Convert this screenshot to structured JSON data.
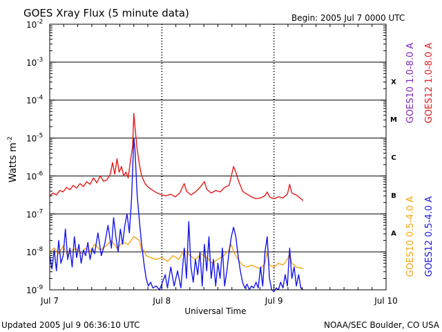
{
  "chart_data": {
    "type": "line",
    "title": "GOES Xray Flux (5 minute data)",
    "begin_text": "Begin:  2005 Jul 7 0000 UTC",
    "xlabel": "Universal Time",
    "ylabel": "Watts m",
    "ylabel_sup": "-2",
    "updated_text": "Updated 2005 Jul  9 06:36:10 UTC",
    "credit_text": "NOAA/SEC Boulder, CO USA",
    "x_range_days": [
      0,
      3
    ],
    "x_ticks": [
      {
        "day": 0,
        "label": "Jul 7"
      },
      {
        "day": 1,
        "label": "Jul 8"
      },
      {
        "day": 2,
        "label": "Jul 9"
      },
      {
        "day": 3,
        "label": "Jul 10"
      }
    ],
    "y_log_range": [
      -9,
      -2
    ],
    "y_ticks": [
      {
        "exp": -2,
        "base": "10",
        "power": "-2"
      },
      {
        "exp": -3,
        "base": "10",
        "power": "-3"
      },
      {
        "exp": -4,
        "base": "10",
        "power": "-4"
      },
      {
        "exp": -5,
        "base": "10",
        "power": "-5"
      },
      {
        "exp": -6,
        "base": "10",
        "power": "-6"
      },
      {
        "exp": -7,
        "base": "10",
        "power": "-7"
      },
      {
        "exp": -8,
        "base": "10",
        "power": "-8"
      },
      {
        "exp": -9,
        "base": "10",
        "power": "-9"
      }
    ],
    "flare_classes": [
      {
        "label": "X",
        "exp": -3.5
      },
      {
        "label": "M",
        "exp": -4.5
      },
      {
        "label": "C",
        "exp": -5.5
      },
      {
        "label": "B",
        "exp": -6.5
      },
      {
        "label": "A",
        "exp": -7.5
      }
    ],
    "legend": [
      {
        "name": "GOES10 1.0-8.0 A",
        "color": "#7b28b8"
      },
      {
        "name": "GOES12 1.0-8.0 A",
        "color": "#e41818"
      },
      {
        "name": "GOES10 0.5-4.0 A",
        "color": "#f5a511"
      },
      {
        "name": "GOES12 0.5-4.0 A",
        "color": "#1414e6"
      }
    ],
    "series": [
      {
        "name": "GOES12 1.0-8.0 A",
        "color": "#e41818",
        "points": [
          [
            0.0,
            -6.52
          ],
          [
            0.03,
            -6.45
          ],
          [
            0.06,
            -6.5
          ],
          [
            0.09,
            -6.38
          ],
          [
            0.12,
            -6.42
          ],
          [
            0.15,
            -6.3
          ],
          [
            0.18,
            -6.36
          ],
          [
            0.21,
            -6.25
          ],
          [
            0.24,
            -6.32
          ],
          [
            0.27,
            -6.2
          ],
          [
            0.3,
            -6.28
          ],
          [
            0.33,
            -6.15
          ],
          [
            0.36,
            -6.22
          ],
          [
            0.39,
            -6.05
          ],
          [
            0.42,
            -6.18
          ],
          [
            0.45,
            -6.0
          ],
          [
            0.48,
            -6.14
          ],
          [
            0.51,
            -6.1
          ],
          [
            0.54,
            -5.95
          ],
          [
            0.56,
            -5.65
          ],
          [
            0.58,
            -5.95
          ],
          [
            0.6,
            -5.55
          ],
          [
            0.62,
            -5.9
          ],
          [
            0.64,
            -5.75
          ],
          [
            0.66,
            -6.0
          ],
          [
            0.68,
            -5.9
          ],
          [
            0.7,
            -6.05
          ],
          [
            0.72,
            -5.6
          ],
          [
            0.74,
            -5.2
          ],
          [
            0.75,
            -4.35
          ],
          [
            0.76,
            -4.7
          ],
          [
            0.78,
            -5.3
          ],
          [
            0.8,
            -5.7
          ],
          [
            0.82,
            -6.0
          ],
          [
            0.85,
            -6.2
          ],
          [
            0.88,
            -6.3
          ],
          [
            0.92,
            -6.38
          ],
          [
            0.96,
            -6.45
          ],
          [
            1.0,
            -6.5
          ],
          [
            1.04,
            -6.52
          ],
          [
            1.08,
            -6.48
          ],
          [
            1.12,
            -6.55
          ],
          [
            1.16,
            -6.45
          ],
          [
            1.2,
            -6.2
          ],
          [
            1.22,
            -6.4
          ],
          [
            1.26,
            -6.5
          ],
          [
            1.3,
            -6.42
          ],
          [
            1.34,
            -6.3
          ],
          [
            1.38,
            -6.15
          ],
          [
            1.4,
            -6.35
          ],
          [
            1.44,
            -6.45
          ],
          [
            1.48,
            -6.38
          ],
          [
            1.52,
            -6.42
          ],
          [
            1.56,
            -6.3
          ],
          [
            1.6,
            -6.25
          ],
          [
            1.62,
            -6.0
          ],
          [
            1.64,
            -5.75
          ],
          [
            1.66,
            -5.9
          ],
          [
            1.68,
            -6.1
          ],
          [
            1.7,
            -6.25
          ],
          [
            1.72,
            -6.4
          ],
          [
            1.76,
            -6.48
          ],
          [
            1.8,
            -6.55
          ],
          [
            1.84,
            -6.6
          ],
          [
            1.88,
            -6.58
          ],
          [
            1.92,
            -6.52
          ],
          [
            1.94,
            -6.42
          ],
          [
            1.96,
            -6.55
          ],
          [
            2.0,
            -6.6
          ],
          [
            2.04,
            -6.55
          ],
          [
            2.08,
            -6.58
          ],
          [
            2.12,
            -6.48
          ],
          [
            2.14,
            -6.22
          ],
          [
            2.16,
            -6.45
          ],
          [
            2.2,
            -6.5
          ],
          [
            2.24,
            -6.6
          ],
          [
            2.26,
            -6.65
          ]
        ]
      },
      {
        "name": "GOES10 0.5-4.0 A",
        "color": "#f5a511",
        "points": [
          [
            0.0,
            -8.0
          ],
          [
            0.04,
            -7.9
          ],
          [
            0.08,
            -8.05
          ],
          [
            0.12,
            -7.85
          ],
          [
            0.16,
            -8.1
          ],
          [
            0.2,
            -7.95
          ],
          [
            0.24,
            -7.92
          ],
          [
            0.28,
            -8.05
          ],
          [
            0.32,
            -7.9
          ],
          [
            0.36,
            -8.0
          ],
          [
            0.4,
            -7.8
          ],
          [
            0.45,
            -7.95
          ],
          [
            0.5,
            -7.85
          ],
          [
            0.55,
            -7.7
          ],
          [
            0.6,
            -7.9
          ],
          [
            0.65,
            -7.75
          ],
          [
            0.7,
            -7.8
          ],
          [
            0.75,
            -7.6
          ],
          [
            0.8,
            -7.7
          ],
          [
            0.82,
            -8.0
          ],
          [
            0.84,
            -7.95
          ],
          [
            0.86,
            -8.1
          ],
          [
            0.9,
            -8.15
          ],
          [
            0.95,
            -8.2
          ],
          [
            1.0,
            -8.15
          ],
          [
            1.05,
            -8.25
          ],
          [
            1.1,
            -8.1
          ],
          [
            1.15,
            -8.2
          ],
          [
            1.2,
            -7.95
          ],
          [
            1.25,
            -8.1
          ],
          [
            1.3,
            -8.2
          ],
          [
            1.35,
            -8.05
          ],
          [
            1.4,
            -8.15
          ],
          [
            1.45,
            -8.3
          ],
          [
            1.5,
            -8.2
          ],
          [
            1.55,
            -8.1
          ],
          [
            1.6,
            -7.95
          ],
          [
            1.62,
            -7.8
          ],
          [
            1.64,
            -8.0
          ],
          [
            1.68,
            -8.2
          ],
          [
            1.72,
            -8.35
          ],
          [
            1.76,
            -8.4
          ],
          [
            1.8,
            -8.35
          ],
          [
            1.84,
            -8.4
          ],
          [
            1.88,
            -8.45
          ],
          [
            1.92,
            -8.3
          ],
          [
            1.94,
            -8.0
          ],
          [
            1.96,
            -8.35
          ],
          [
            2.0,
            -8.4
          ],
          [
            2.04,
            -8.3
          ],
          [
            2.08,
            -8.35
          ],
          [
            2.12,
            -8.2
          ],
          [
            2.14,
            -8.05
          ],
          [
            2.16,
            -8.3
          ],
          [
            2.2,
            -8.4
          ],
          [
            2.24,
            -8.42
          ],
          [
            2.26,
            -8.45
          ]
        ]
      },
      {
        "name": "GOES12 0.5-4.0 A",
        "color": "#1414e6",
        "points": [
          [
            0.0,
            -8.1
          ],
          [
            0.02,
            -8.45
          ],
          [
            0.04,
            -7.95
          ],
          [
            0.06,
            -8.5
          ],
          [
            0.08,
            -7.7
          ],
          [
            0.1,
            -8.3
          ],
          [
            0.12,
            -8.1
          ],
          [
            0.14,
            -7.4
          ],
          [
            0.16,
            -8.2
          ],
          [
            0.18,
            -7.9
          ],
          [
            0.2,
            -8.4
          ],
          [
            0.22,
            -7.6
          ],
          [
            0.24,
            -8.15
          ],
          [
            0.26,
            -7.8
          ],
          [
            0.28,
            -8.3
          ],
          [
            0.3,
            -7.95
          ],
          [
            0.32,
            -8.1
          ],
          [
            0.34,
            -7.75
          ],
          [
            0.36,
            -8.2
          ],
          [
            0.38,
            -7.9
          ],
          [
            0.4,
            -8.05
          ],
          [
            0.43,
            -7.5
          ],
          [
            0.46,
            -8.1
          ],
          [
            0.49,
            -7.8
          ],
          [
            0.52,
            -7.3
          ],
          [
            0.55,
            -7.9
          ],
          [
            0.57,
            -7.1
          ],
          [
            0.59,
            -7.6
          ],
          [
            0.61,
            -8.0
          ],
          [
            0.63,
            -7.4
          ],
          [
            0.65,
            -7.8
          ],
          [
            0.67,
            -7.3
          ],
          [
            0.69,
            -7.0
          ],
          [
            0.71,
            -7.5
          ],
          [
            0.73,
            -6.6
          ],
          [
            0.75,
            -5.0
          ],
          [
            0.76,
            -5.3
          ],
          [
            0.78,
            -6.5
          ],
          [
            0.8,
            -7.2
          ],
          [
            0.82,
            -7.8
          ],
          [
            0.84,
            -8.3
          ],
          [
            0.86,
            -8.7
          ],
          [
            0.88,
            -8.9
          ],
          [
            0.9,
            -8.8
          ],
          [
            0.92,
            -8.95
          ],
          [
            0.95,
            -8.9
          ],
          [
            0.98,
            -9.0
          ],
          [
            1.0,
            -8.85
          ],
          [
            1.03,
            -8.6
          ],
          [
            1.05,
            -8.95
          ],
          [
            1.08,
            -8.4
          ],
          [
            1.11,
            -8.9
          ],
          [
            1.14,
            -8.5
          ],
          [
            1.17,
            -8.95
          ],
          [
            1.2,
            -7.9
          ],
          [
            1.22,
            -8.7
          ],
          [
            1.24,
            -7.2
          ],
          [
            1.26,
            -8.4
          ],
          [
            1.28,
            -8.8
          ],
          [
            1.3,
            -8.2
          ],
          [
            1.32,
            -8.6
          ],
          [
            1.34,
            -8.0
          ],
          [
            1.36,
            -8.9
          ],
          [
            1.38,
            -7.8
          ],
          [
            1.4,
            -8.5
          ],
          [
            1.42,
            -7.6
          ],
          [
            1.44,
            -8.7
          ],
          [
            1.46,
            -8.2
          ],
          [
            1.48,
            -8.9
          ],
          [
            1.5,
            -8.3
          ],
          [
            1.52,
            -8.7
          ],
          [
            1.54,
            -7.9
          ],
          [
            1.56,
            -8.9
          ],
          [
            1.58,
            -8.5
          ],
          [
            1.6,
            -8.0
          ],
          [
            1.62,
            -7.6
          ],
          [
            1.64,
            -7.35
          ],
          [
            1.66,
            -7.6
          ],
          [
            1.68,
            -8.1
          ],
          [
            1.7,
            -8.5
          ],
          [
            1.72,
            -8.8
          ],
          [
            1.74,
            -8.95
          ],
          [
            1.76,
            -8.85
          ],
          [
            1.78,
            -9.0
          ],
          [
            1.8,
            -8.9
          ],
          [
            1.82,
            -8.95
          ],
          [
            1.84,
            -8.8
          ],
          [
            1.86,
            -8.95
          ],
          [
            1.88,
            -8.4
          ],
          [
            1.9,
            -8.9
          ],
          [
            1.92,
            -8.0
          ],
          [
            1.94,
            -7.6
          ],
          [
            1.96,
            -8.7
          ],
          [
            1.98,
            -9.0
          ],
          [
            2.0,
            -9.05
          ],
          [
            2.02,
            -8.95
          ],
          [
            2.04,
            -9.0
          ],
          [
            2.06,
            -8.8
          ],
          [
            2.08,
            -8.95
          ],
          [
            2.1,
            -8.6
          ],
          [
            2.12,
            -8.9
          ],
          [
            2.14,
            -7.9
          ],
          [
            2.16,
            -8.7
          ],
          [
            2.18,
            -8.4
          ],
          [
            2.2,
            -8.9
          ],
          [
            2.22,
            -8.6
          ],
          [
            2.24,
            -8.95
          ],
          [
            2.26,
            -9.0
          ]
        ]
      }
    ]
  }
}
